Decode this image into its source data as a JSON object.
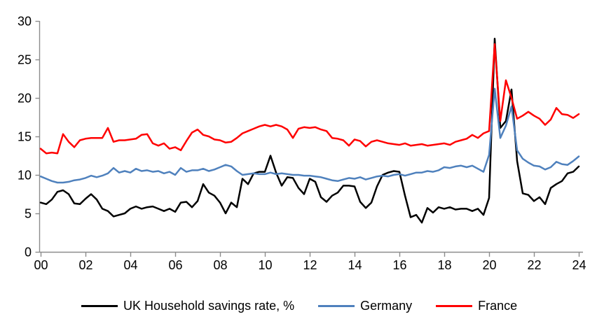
{
  "figure": {
    "background": "#FFFFFF"
  },
  "chart_data": {
    "type": "line",
    "title": "",
    "xlabel": "",
    "ylabel": "",
    "frequency": "quarterly",
    "x_start": "2000Q1",
    "x_end": "2024Q1",
    "xlim": [
      2000,
      2024.3
    ],
    "ylim": [
      0,
      30
    ],
    "grid": false,
    "legend_position": "bottom",
    "axis_color": "#8C8C8C",
    "tick_label_color": "#000000",
    "y_ticks": [
      0,
      5,
      10,
      15,
      20,
      25,
      30
    ],
    "x_ticks": [
      {
        "year": 2000,
        "label": "00"
      },
      {
        "year": 2002,
        "label": "02"
      },
      {
        "year": 2004,
        "label": "04"
      },
      {
        "year": 2006,
        "label": "06"
      },
      {
        "year": 2008,
        "label": "08"
      },
      {
        "year": 2010,
        "label": "10"
      },
      {
        "year": 2012,
        "label": "12"
      },
      {
        "year": 2014,
        "label": "14"
      },
      {
        "year": 2016,
        "label": "16"
      },
      {
        "year": 2018,
        "label": "18"
      },
      {
        "year": 2020,
        "label": "20"
      },
      {
        "year": 2022,
        "label": "22"
      },
      {
        "year": 2024,
        "label": "24"
      }
    ],
    "series": [
      {
        "name": "UK Household savings rate, %",
        "color": "#000000",
        "values": [
          6.4,
          6.2,
          6.8,
          7.8,
          8.0,
          7.5,
          6.3,
          6.2,
          6.9,
          7.5,
          6.8,
          5.6,
          5.3,
          4.6,
          4.8,
          5.0,
          5.6,
          5.9,
          5.6,
          5.8,
          5.9,
          5.6,
          5.3,
          5.6,
          5.2,
          6.4,
          6.5,
          5.8,
          6.6,
          8.8,
          7.7,
          7.3,
          6.4,
          5.0,
          6.4,
          5.8,
          9.5,
          8.8,
          10.2,
          10.4,
          10.4,
          12.5,
          10.3,
          8.6,
          9.7,
          9.6,
          8.3,
          7.5,
          9.5,
          9.1,
          7.1,
          6.5,
          7.3,
          7.7,
          8.6,
          8.6,
          8.5,
          6.5,
          5.7,
          6.4,
          8.5,
          10.0,
          10.3,
          10.5,
          10.4,
          7.3,
          4.5,
          4.8,
          3.8,
          5.7,
          5.1,
          5.8,
          5.6,
          5.8,
          5.5,
          5.6,
          5.6,
          5.3,
          5.6,
          4.8,
          7.0,
          27.7,
          16.1,
          17.0,
          21.1,
          11.8,
          7.6,
          7.4,
          6.6,
          7.1,
          6.2,
          8.3,
          8.8,
          9.2,
          10.2,
          10.4,
          11.1
        ]
      },
      {
        "name": "Germany",
        "color": "#4F81BD",
        "values": [
          9.8,
          9.5,
          9.2,
          9.0,
          9.0,
          9.1,
          9.3,
          9.4,
          9.6,
          9.9,
          9.7,
          9.9,
          10.2,
          10.9,
          10.3,
          10.5,
          10.3,
          10.8,
          10.5,
          10.6,
          10.4,
          10.5,
          10.2,
          10.4,
          10.0,
          10.9,
          10.4,
          10.6,
          10.6,
          10.8,
          10.5,
          10.7,
          11.0,
          11.3,
          11.1,
          10.5,
          10.0,
          10.1,
          10.2,
          10.1,
          10.1,
          10.3,
          10.1,
          10.2,
          10.1,
          10.0,
          10.0,
          9.9,
          9.9,
          9.8,
          9.7,
          9.5,
          9.3,
          9.2,
          9.4,
          9.6,
          9.5,
          9.7,
          9.4,
          9.6,
          9.8,
          9.9,
          9.8,
          10.0,
          10.1,
          9.9,
          10.1,
          10.3,
          10.3,
          10.5,
          10.4,
          10.6,
          11.0,
          10.9,
          11.1,
          11.2,
          11.0,
          11.2,
          10.8,
          10.4,
          12.6,
          21.2,
          14.8,
          16.4,
          18.9,
          13.2,
          12.1,
          11.6,
          11.2,
          11.1,
          10.7,
          11.0,
          11.7,
          11.4,
          11.3,
          11.8,
          12.4
        ]
      },
      {
        "name": "France",
        "color": "#FF0000",
        "values": [
          13.4,
          12.8,
          12.9,
          12.8,
          15.3,
          14.3,
          13.6,
          14.5,
          14.7,
          14.8,
          14.8,
          14.8,
          16.1,
          14.3,
          14.5,
          14.5,
          14.6,
          14.7,
          15.2,
          15.3,
          14.1,
          13.8,
          14.1,
          13.4,
          13.6,
          13.2,
          14.4,
          15.5,
          15.9,
          15.2,
          15.0,
          14.6,
          14.5,
          14.2,
          14.3,
          14.8,
          15.4,
          15.7,
          16.0,
          16.3,
          16.5,
          16.3,
          16.5,
          16.3,
          15.9,
          14.8,
          16.0,
          16.2,
          16.1,
          16.2,
          15.9,
          15.7,
          14.8,
          14.7,
          14.5,
          13.8,
          14.6,
          14.4,
          13.7,
          14.3,
          14.5,
          14.3,
          14.1,
          14.0,
          13.9,
          14.1,
          13.8,
          13.9,
          14.0,
          13.8,
          13.9,
          14.0,
          14.1,
          13.9,
          14.3,
          14.5,
          14.7,
          15.2,
          14.8,
          15.4,
          15.7,
          27.0,
          17.0,
          22.3,
          20.0,
          17.3,
          17.7,
          18.2,
          17.7,
          17.3,
          16.5,
          17.2,
          18.7,
          17.9,
          17.8,
          17.4,
          17.9
        ]
      }
    ]
  }
}
